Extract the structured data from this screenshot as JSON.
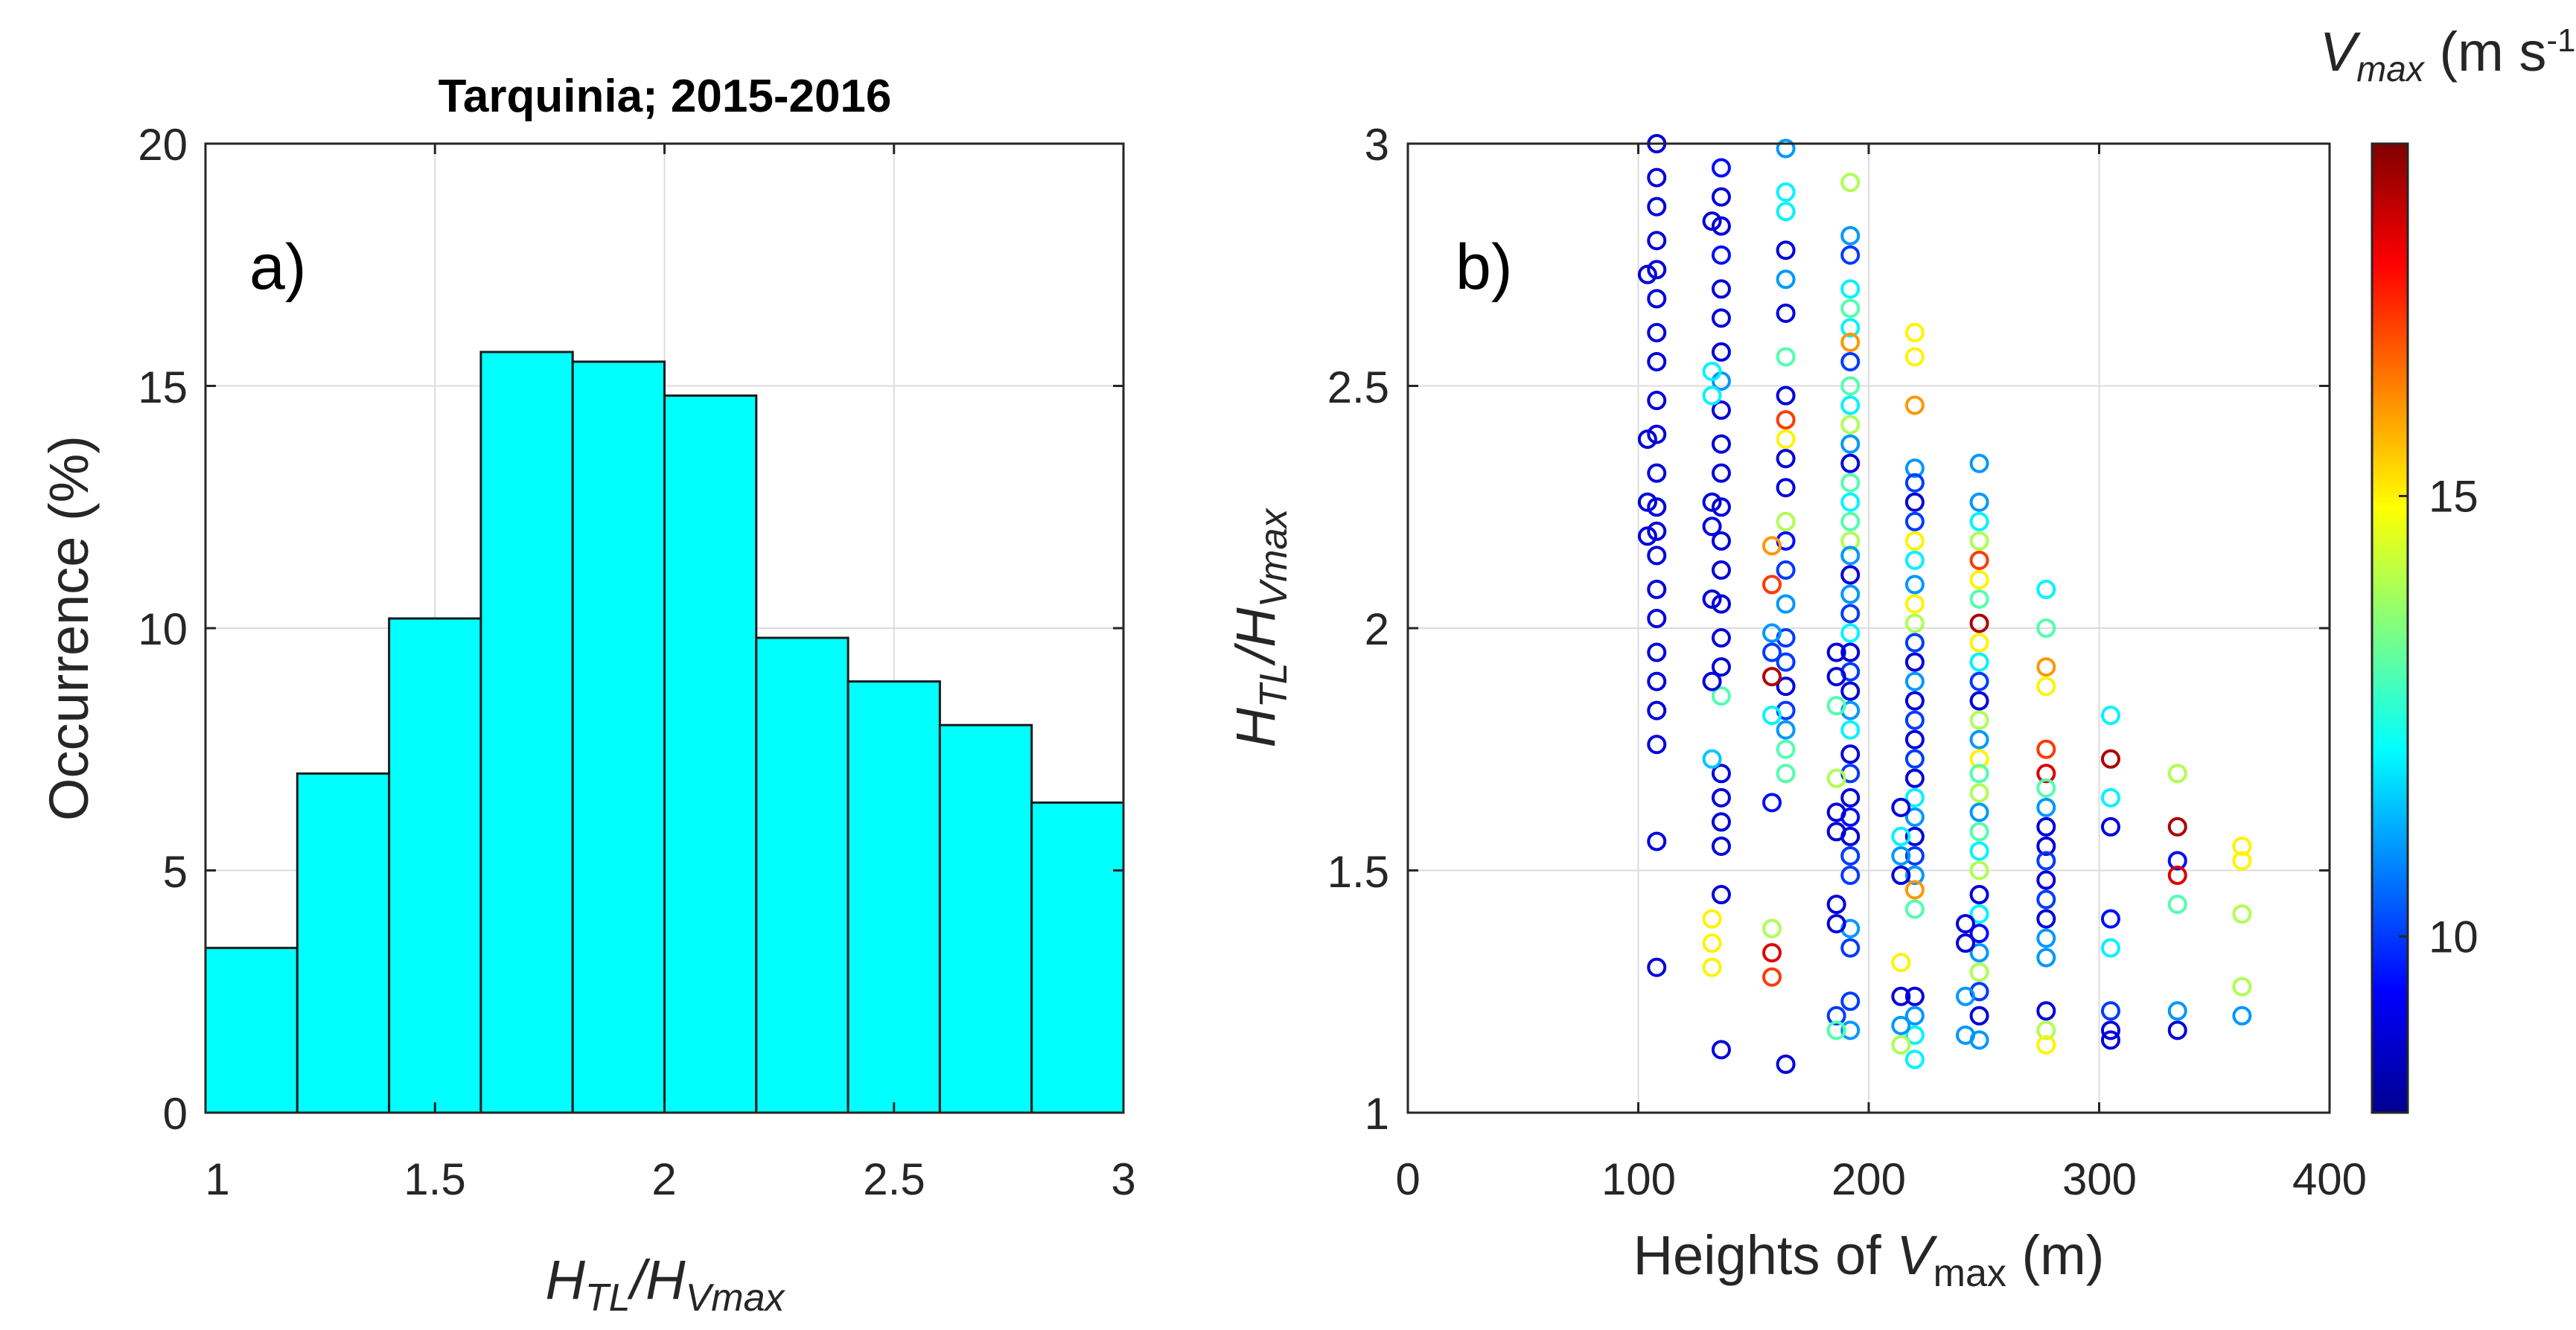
{
  "chart_data": [
    {
      "type": "bar",
      "panel_label": "a)",
      "title": "Tarquinia;  2015-2016",
      "ylabel": "Occurrence (%)",
      "xlabel": {
        "base": "H",
        "sub1": "TL",
        "mid": "/H",
        "sub2": "Vmax"
      },
      "xlim": [
        1,
        3
      ],
      "ylim": [
        0,
        20
      ],
      "xticks": [
        "1",
        "1.5",
        "2",
        "2.5",
        "3"
      ],
      "yticks": [
        "0",
        "5",
        "10",
        "15",
        "20"
      ],
      "bar_color": "#00FFFF",
      "bin_edges": [
        1.0,
        1.2,
        1.4,
        1.6,
        1.8,
        2.0,
        2.2,
        2.4,
        2.6,
        2.8,
        3.0
      ],
      "values": [
        3.4,
        7.0,
        10.2,
        15.7,
        15.5,
        14.8,
        9.8,
        8.9,
        8.0,
        6.4
      ]
    },
    {
      "type": "scatter",
      "panel_label": "b)",
      "xlabel": {
        "pre": "Heights of ",
        "var": "V",
        "sub": "max",
        "post": " (m)"
      },
      "ylabel": {
        "base": "H",
        "sub1": "TL",
        "mid": "/H",
        "sub2": "Vmax"
      },
      "xlim": [
        0,
        400
      ],
      "ylim": [
        1,
        3
      ],
      "xticks": [
        "0",
        "100",
        "200",
        "300",
        "400"
      ],
      "yticks": [
        "1",
        "1.5",
        "2",
        "2.5",
        "3"
      ],
      "colorbar": {
        "title_var": "V",
        "title_sub": "max",
        "title_units": " (m s",
        "title_exp": "-1",
        "title_close": ")",
        "range": [
          8,
          19
        ],
        "ticks": [
          "10",
          "15"
        ],
        "colormap": "jet"
      },
      "point_colums_x": [
        108,
        136,
        164,
        192,
        220,
        248,
        277,
        305,
        334,
        362
      ],
      "points": [
        [
          108,
          3.0,
          9
        ],
        [
          108,
          2.93,
          9
        ],
        [
          108,
          2.87,
          9
        ],
        [
          108,
          2.8,
          9
        ],
        [
          108,
          2.74,
          9
        ],
        [
          108,
          2.68,
          9
        ],
        [
          108,
          2.61,
          9
        ],
        [
          108,
          2.55,
          9
        ],
        [
          108,
          2.47,
          9
        ],
        [
          108,
          2.4,
          9
        ],
        [
          108,
          2.32,
          9
        ],
        [
          108,
          2.25,
          9
        ],
        [
          108,
          2.2,
          9
        ],
        [
          108,
          2.15,
          9
        ],
        [
          108,
          2.08,
          9
        ],
        [
          108,
          2.02,
          9
        ],
        [
          108,
          1.95,
          9
        ],
        [
          108,
          1.89,
          9
        ],
        [
          108,
          1.83,
          9
        ],
        [
          108,
          1.76,
          9
        ],
        [
          108,
          1.56,
          9
        ],
        [
          108,
          1.3,
          9
        ],
        [
          104,
          2.73,
          9
        ],
        [
          104,
          2.39,
          9
        ],
        [
          104,
          2.26,
          9
        ],
        [
          104,
          2.19,
          9
        ],
        [
          136,
          2.95,
          9.5
        ],
        [
          136,
          2.89,
          9
        ],
        [
          136,
          2.83,
          9
        ],
        [
          136,
          2.77,
          9.5
        ],
        [
          136,
          2.7,
          9
        ],
        [
          136,
          2.64,
          9
        ],
        [
          136,
          2.57,
          9
        ],
        [
          136,
          2.51,
          11
        ],
        [
          136,
          2.45,
          9
        ],
        [
          136,
          2.38,
          9
        ],
        [
          136,
          2.32,
          9
        ],
        [
          136,
          2.25,
          9
        ],
        [
          136,
          2.18,
          9
        ],
        [
          136,
          2.12,
          9
        ],
        [
          136,
          2.05,
          9
        ],
        [
          136,
          1.98,
          9
        ],
        [
          136,
          1.92,
          9
        ],
        [
          136,
          1.86,
          13
        ],
        [
          136,
          1.7,
          9
        ],
        [
          136,
          1.65,
          9
        ],
        [
          136,
          1.6,
          9
        ],
        [
          136,
          1.55,
          9
        ],
        [
          136,
          1.45,
          9
        ],
        [
          136,
          1.13,
          9
        ],
        [
          132,
          2.84,
          9
        ],
        [
          132,
          2.53,
          12
        ],
        [
          132,
          2.48,
          12
        ],
        [
          132,
          2.26,
          9
        ],
        [
          132,
          2.21,
          9
        ],
        [
          132,
          2.06,
          9
        ],
        [
          132,
          1.89,
          9
        ],
        [
          132,
          1.73,
          11.5
        ],
        [
          132,
          1.4,
          15
        ],
        [
          132,
          1.35,
          15
        ],
        [
          132,
          1.3,
          15
        ],
        [
          164,
          2.99,
          11
        ],
        [
          164,
          2.9,
          12
        ],
        [
          164,
          2.86,
          12
        ],
        [
          164,
          2.78,
          9
        ],
        [
          164,
          2.72,
          11
        ],
        [
          164,
          2.65,
          9
        ],
        [
          164,
          2.56,
          13
        ],
        [
          164,
          2.48,
          9
        ],
        [
          164,
          2.43,
          17
        ],
        [
          164,
          2.39,
          15
        ],
        [
          164,
          2.35,
          9
        ],
        [
          164,
          2.29,
          9
        ],
        [
          164,
          2.22,
          14
        ],
        [
          164,
          2.18,
          9.5
        ],
        [
          164,
          2.12,
          10
        ],
        [
          164,
          2.05,
          11
        ],
        [
          164,
          1.98,
          10
        ],
        [
          164,
          1.93,
          10
        ],
        [
          164,
          1.88,
          9
        ],
        [
          164,
          1.83,
          10
        ],
        [
          164,
          1.79,
          11
        ],
        [
          164,
          1.75,
          13
        ],
        [
          164,
          1.7,
          13
        ],
        [
          164,
          1.1,
          9
        ],
        [
          158,
          2.17,
          16
        ],
        [
          158,
          2.09,
          17
        ],
        [
          158,
          1.99,
          11
        ],
        [
          158,
          1.95,
          10
        ],
        [
          158,
          1.9,
          18.5
        ],
        [
          158,
          1.82,
          12
        ],
        [
          158,
          1.64,
          9.5
        ],
        [
          158,
          1.38,
          14
        ],
        [
          158,
          1.33,
          18
        ],
        [
          158,
          1.28,
          17
        ],
        [
          192,
          2.92,
          14
        ],
        [
          192,
          2.81,
          11
        ],
        [
          192,
          2.77,
          10
        ],
        [
          192,
          2.7,
          12
        ],
        [
          192,
          2.66,
          13
        ],
        [
          192,
          2.62,
          12
        ],
        [
          192,
          2.59,
          16
        ],
        [
          192,
          2.55,
          10
        ],
        [
          192,
          2.5,
          13
        ],
        [
          192,
          2.46,
          12
        ],
        [
          192,
          2.42,
          14
        ],
        [
          192,
          2.38,
          11
        ],
        [
          192,
          2.34,
          9
        ],
        [
          192,
          2.3,
          13
        ],
        [
          192,
          2.26,
          12
        ],
        [
          192,
          2.22,
          13
        ],
        [
          192,
          2.18,
          14
        ],
        [
          192,
          2.15,
          11
        ],
        [
          192,
          2.11,
          9
        ],
        [
          192,
          2.07,
          11
        ],
        [
          192,
          2.03,
          10
        ],
        [
          192,
          1.99,
          12
        ],
        [
          192,
          1.95,
          9
        ],
        [
          192,
          1.91,
          10
        ],
        [
          192,
          1.87,
          9
        ],
        [
          192,
          1.83,
          11
        ],
        [
          192,
          1.79,
          12
        ],
        [
          192,
          1.74,
          9
        ],
        [
          192,
          1.7,
          10
        ],
        [
          192,
          1.65,
          9
        ],
        [
          192,
          1.61,
          9.5
        ],
        [
          192,
          1.57,
          9
        ],
        [
          192,
          1.53,
          10
        ],
        [
          192,
          1.49,
          10
        ],
        [
          192,
          1.38,
          11
        ],
        [
          192,
          1.34,
          10
        ],
        [
          192,
          1.23,
          10
        ],
        [
          192,
          1.17,
          11
        ],
        [
          186,
          1.95,
          9
        ],
        [
          186,
          1.9,
          9
        ],
        [
          186,
          1.84,
          13
        ],
        [
          186,
          1.69,
          14
        ],
        [
          186,
          1.62,
          9
        ],
        [
          186,
          1.58,
          9
        ],
        [
          186,
          1.43,
          9
        ],
        [
          186,
          1.39,
          9
        ],
        [
          186,
          1.2,
          10
        ],
        [
          186,
          1.17,
          13
        ],
        [
          220,
          2.61,
          15
        ],
        [
          220,
          2.56,
          15
        ],
        [
          220,
          2.46,
          16
        ],
        [
          220,
          2.33,
          11
        ],
        [
          220,
          2.3,
          10
        ],
        [
          220,
          2.26,
          9
        ],
        [
          220,
          2.22,
          10
        ],
        [
          220,
          2.18,
          15
        ],
        [
          220,
          2.14,
          12
        ],
        [
          220,
          2.09,
          11
        ],
        [
          220,
          2.05,
          15
        ],
        [
          220,
          2.01,
          14
        ],
        [
          220,
          1.97,
          10
        ],
        [
          220,
          1.93,
          9
        ],
        [
          220,
          1.89,
          11
        ],
        [
          220,
          1.85,
          9
        ],
        [
          220,
          1.81,
          10
        ],
        [
          220,
          1.77,
          9
        ],
        [
          220,
          1.73,
          10
        ],
        [
          220,
          1.69,
          9
        ],
        [
          220,
          1.65,
          12
        ],
        [
          220,
          1.61,
          11
        ],
        [
          220,
          1.57,
          9
        ],
        [
          220,
          1.53,
          10
        ],
        [
          220,
          1.49,
          11
        ],
        [
          220,
          1.46,
          16
        ],
        [
          220,
          1.42,
          13
        ],
        [
          220,
          1.24,
          9
        ],
        [
          220,
          1.2,
          11
        ],
        [
          220,
          1.16,
          12
        ],
        [
          220,
          1.11,
          12
        ],
        [
          214,
          1.63,
          9
        ],
        [
          214,
          1.57,
          12
        ],
        [
          214,
          1.53,
          11
        ],
        [
          214,
          1.49,
          9
        ],
        [
          214,
          1.31,
          15
        ],
        [
          214,
          1.24,
          9
        ],
        [
          214,
          1.18,
          11
        ],
        [
          214,
          1.14,
          14
        ],
        [
          248,
          2.34,
          11
        ],
        [
          248,
          2.26,
          11
        ],
        [
          248,
          2.22,
          12
        ],
        [
          248,
          2.18,
          14
        ],
        [
          248,
          2.14,
          17
        ],
        [
          248,
          2.1,
          15
        ],
        [
          248,
          2.06,
          13
        ],
        [
          248,
          2.01,
          18.5
        ],
        [
          248,
          1.97,
          15
        ],
        [
          248,
          1.93,
          12
        ],
        [
          248,
          1.89,
          10
        ],
        [
          248,
          1.85,
          9
        ],
        [
          248,
          1.81,
          14
        ],
        [
          248,
          1.77,
          11
        ],
        [
          248,
          1.73,
          15
        ],
        [
          248,
          1.7,
          13
        ],
        [
          248,
          1.66,
          14
        ],
        [
          248,
          1.62,
          11
        ],
        [
          248,
          1.58,
          13
        ],
        [
          248,
          1.54,
          12
        ],
        [
          248,
          1.5,
          14
        ],
        [
          248,
          1.45,
          9
        ],
        [
          248,
          1.41,
          12
        ],
        [
          248,
          1.37,
          9.5
        ],
        [
          248,
          1.33,
          11
        ],
        [
          248,
          1.29,
          14
        ],
        [
          248,
          1.25,
          10
        ],
        [
          248,
          1.2,
          9
        ],
        [
          248,
          1.15,
          11
        ],
        [
          242,
          1.39,
          9
        ],
        [
          242,
          1.35,
          9
        ],
        [
          242,
          1.24,
          11
        ],
        [
          242,
          1.16,
          11
        ],
        [
          277,
          2.08,
          12
        ],
        [
          277,
          2.0,
          13
        ],
        [
          277,
          1.92,
          16
        ],
        [
          277,
          1.88,
          15
        ],
        [
          277,
          1.75,
          17
        ],
        [
          277,
          1.7,
          18
        ],
        [
          277,
          1.67,
          13
        ],
        [
          277,
          1.63,
          11
        ],
        [
          277,
          1.59,
          9
        ],
        [
          277,
          1.55,
          9
        ],
        [
          277,
          1.52,
          10
        ],
        [
          277,
          1.48,
          9
        ],
        [
          277,
          1.44,
          10
        ],
        [
          277,
          1.4,
          9
        ],
        [
          277,
          1.36,
          11
        ],
        [
          277,
          1.32,
          11
        ],
        [
          277,
          1.21,
          9
        ],
        [
          277,
          1.17,
          14
        ],
        [
          277,
          1.14,
          15
        ],
        [
          305,
          1.82,
          12
        ],
        [
          305,
          1.73,
          18.5
        ],
        [
          305,
          1.65,
          12
        ],
        [
          305,
          1.59,
          9
        ],
        [
          305,
          1.4,
          9.5
        ],
        [
          305,
          1.34,
          12
        ],
        [
          305,
          1.21,
          10
        ],
        [
          305,
          1.17,
          9
        ],
        [
          305,
          1.15,
          9
        ],
        [
          334,
          1.7,
          14
        ],
        [
          334,
          1.59,
          18.5
        ],
        [
          334,
          1.52,
          9.5
        ],
        [
          334,
          1.49,
          18
        ],
        [
          334,
          1.43,
          13
        ],
        [
          334,
          1.21,
          11
        ],
        [
          334,
          1.17,
          9
        ],
        [
          362,
          1.55,
          15
        ],
        [
          362,
          1.52,
          15
        ],
        [
          362,
          1.41,
          14
        ],
        [
          362,
          1.26,
          14
        ],
        [
          362,
          1.2,
          11
        ]
      ]
    }
  ]
}
